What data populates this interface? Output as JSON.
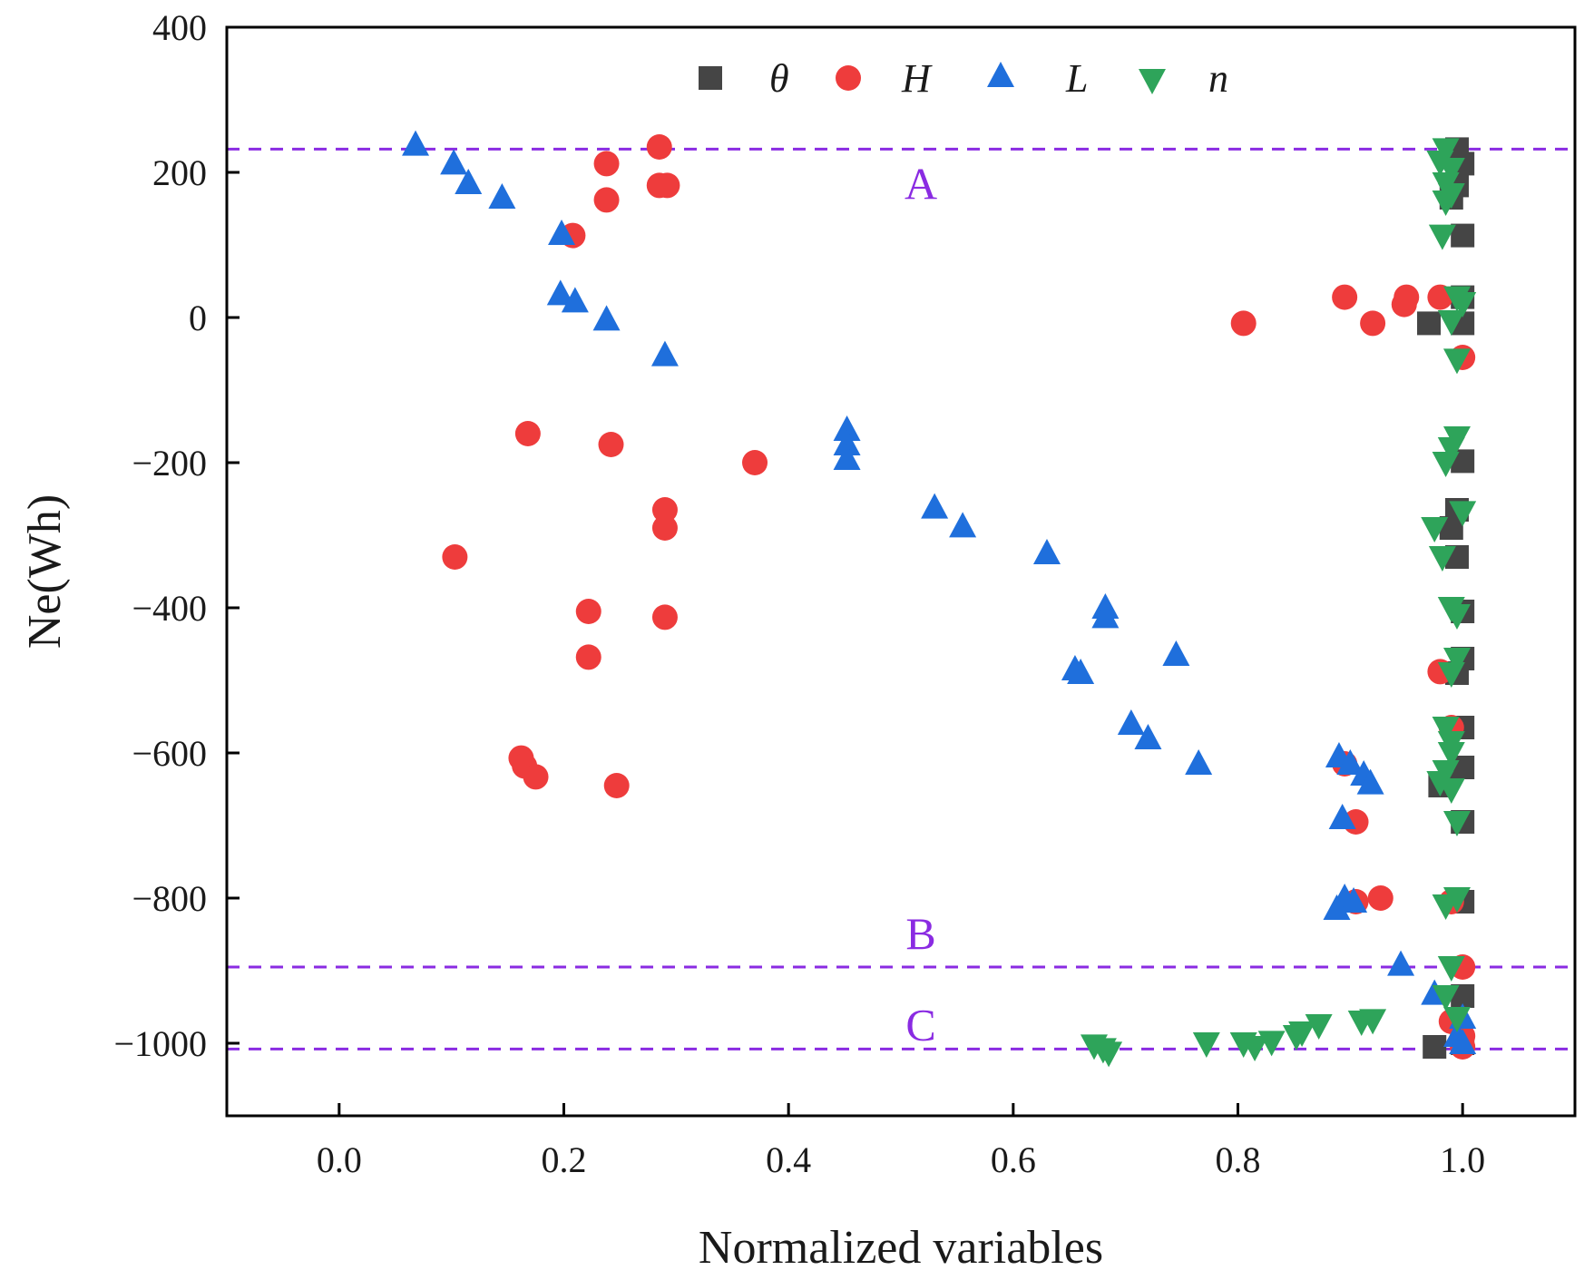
{
  "colors": {
    "theta": "#454545",
    "H": "#ee3c3c",
    "L": "#1f6fdc",
    "n": "#2ea45a",
    "reference": "#8a2be2",
    "axis": "#000000"
  },
  "chart_data": {
    "type": "scatter",
    "title": "",
    "xlabel": "Normalized variables",
    "ylabel": "Ne(Wh)",
    "xlim": [
      -0.1,
      1.1
    ],
    "ylim": [
      -1100,
      400
    ],
    "xticks": [
      0.0,
      0.2,
      0.4,
      0.6,
      0.8,
      1.0
    ],
    "xtick_labels": [
      "0.0",
      "0.2",
      "0.4",
      "0.6",
      "0.8",
      "1.0"
    ],
    "yticks": [
      400,
      200,
      0,
      -200,
      -400,
      -600,
      -800,
      -1000
    ],
    "ytick_labels": [
      "400",
      "200",
      "0",
      "−200",
      "−400",
      "−600",
      "−800",
      "−1000"
    ],
    "legend_position": "top",
    "reference_lines": [
      {
        "label": "A",
        "y": 232
      },
      {
        "label": "B",
        "y": -895
      },
      {
        "label": "C",
        "y": -1008
      }
    ],
    "series": [
      {
        "key": "theta",
        "name": "θ",
        "marker": "square",
        "points": [
          [
            0.995,
            232
          ],
          [
            1.0,
            212
          ],
          [
            0.995,
            182
          ],
          [
            0.99,
            165
          ],
          [
            1.0,
            113
          ],
          [
            1.0,
            28
          ],
          [
            0.97,
            -8
          ],
          [
            1.0,
            -8
          ],
          [
            1.0,
            -198
          ],
          [
            0.995,
            -265
          ],
          [
            0.99,
            -290
          ],
          [
            0.995,
            -330
          ],
          [
            1.0,
            -405
          ],
          [
            0.995,
            -490
          ],
          [
            1.0,
            -470
          ],
          [
            1.0,
            -565
          ],
          [
            1.0,
            -620
          ],
          [
            0.98,
            -645
          ],
          [
            1.0,
            -695
          ],
          [
            1.0,
            -805
          ],
          [
            1.0,
            -935
          ],
          [
            0.975,
            -1005
          ],
          [
            1.0,
            -1000
          ]
        ]
      },
      {
        "key": "H",
        "name": "H",
        "marker": "circle",
        "points": [
          [
            0.285,
            235
          ],
          [
            0.238,
            212
          ],
          [
            0.285,
            182
          ],
          [
            0.292,
            182
          ],
          [
            0.238,
            162
          ],
          [
            0.208,
            113
          ],
          [
            0.895,
            28
          ],
          [
            0.95,
            28
          ],
          [
            0.948,
            18
          ],
          [
            0.98,
            28
          ],
          [
            0.805,
            -8
          ],
          [
            0.92,
            -8
          ],
          [
            1.0,
            -55
          ],
          [
            0.168,
            -160
          ],
          [
            0.242,
            -175
          ],
          [
            0.37,
            -200
          ],
          [
            0.29,
            -265
          ],
          [
            0.29,
            -290
          ],
          [
            0.103,
            -330
          ],
          [
            0.222,
            -405
          ],
          [
            0.29,
            -413
          ],
          [
            0.222,
            -468
          ],
          [
            0.98,
            -488
          ],
          [
            0.99,
            -565
          ],
          [
            0.895,
            -615
          ],
          [
            0.162,
            -607
          ],
          [
            0.165,
            -618
          ],
          [
            0.175,
            -633
          ],
          [
            0.247,
            -645
          ],
          [
            0.905,
            -695
          ],
          [
            0.905,
            -805
          ],
          [
            0.927,
            -800
          ],
          [
            0.99,
            -805
          ],
          [
            1.0,
            -895
          ],
          [
            0.99,
            -970
          ],
          [
            1.0,
            -990
          ],
          [
            1.0,
            -1005
          ]
        ]
      },
      {
        "key": "L",
        "name": "L",
        "marker": "triangle-up",
        "points": [
          [
            0.068,
            238
          ],
          [
            0.102,
            212
          ],
          [
            0.115,
            185
          ],
          [
            0.145,
            165
          ],
          [
            0.198,
            115
          ],
          [
            0.197,
            32
          ],
          [
            0.21,
            22
          ],
          [
            0.238,
            -3
          ],
          [
            0.29,
            -52
          ],
          [
            0.452,
            -155
          ],
          [
            0.452,
            -175
          ],
          [
            0.452,
            -195
          ],
          [
            0.53,
            -262
          ],
          [
            0.555,
            -288
          ],
          [
            0.63,
            -325
          ],
          [
            0.682,
            -400
          ],
          [
            0.682,
            -413
          ],
          [
            0.745,
            -465
          ],
          [
            0.655,
            -485
          ],
          [
            0.66,
            -490
          ],
          [
            0.705,
            -560
          ],
          [
            0.72,
            -580
          ],
          [
            0.765,
            -615
          ],
          [
            0.89,
            -605
          ],
          [
            0.9,
            -615
          ],
          [
            0.912,
            -630
          ],
          [
            0.918,
            -642
          ],
          [
            0.893,
            -690
          ],
          [
            0.895,
            -800
          ],
          [
            0.903,
            -805
          ],
          [
            0.888,
            -815
          ],
          [
            0.945,
            -892
          ],
          [
            0.975,
            -932
          ],
          [
            1.0,
            -965
          ],
          [
            0.995,
            -990
          ],
          [
            1.0,
            -1000
          ]
        ]
      },
      {
        "key": "n",
        "name": "n",
        "marker": "triangle-down",
        "points": [
          [
            0.985,
            232
          ],
          [
            0.98,
            215
          ],
          [
            0.99,
            205
          ],
          [
            0.985,
            185
          ],
          [
            0.99,
            170
          ],
          [
            0.985,
            160
          ],
          [
            0.982,
            113
          ],
          [
            0.995,
            28
          ],
          [
            1.0,
            20
          ],
          [
            0.99,
            -5
          ],
          [
            0.995,
            -58
          ],
          [
            0.995,
            -165
          ],
          [
            0.99,
            -180
          ],
          [
            0.985,
            -200
          ],
          [
            1.0,
            -268
          ],
          [
            0.975,
            -290
          ],
          [
            0.982,
            -330
          ],
          [
            0.99,
            -400
          ],
          [
            0.995,
            -410
          ],
          [
            0.995,
            -470
          ],
          [
            0.99,
            -490
          ],
          [
            0.985,
            -565
          ],
          [
            0.99,
            -585
          ],
          [
            0.99,
            -600
          ],
          [
            0.985,
            -625
          ],
          [
            0.98,
            -640
          ],
          [
            0.99,
            -650
          ],
          [
            0.995,
            -695
          ],
          [
            0.985,
            -810
          ],
          [
            0.995,
            -800
          ],
          [
            0.99,
            -895
          ],
          [
            0.985,
            -935
          ],
          [
            0.995,
            -965
          ],
          [
            0.672,
            -1003
          ],
          [
            0.68,
            -1008
          ],
          [
            0.685,
            -1013
          ],
          [
            0.772,
            -1000
          ],
          [
            0.805,
            -1000
          ],
          [
            0.815,
            -1005
          ],
          [
            0.83,
            -998
          ],
          [
            0.852,
            -990
          ],
          [
            0.857,
            -985
          ],
          [
            0.872,
            -975
          ],
          [
            0.91,
            -970
          ],
          [
            0.92,
            -968
          ]
        ]
      }
    ]
  }
}
